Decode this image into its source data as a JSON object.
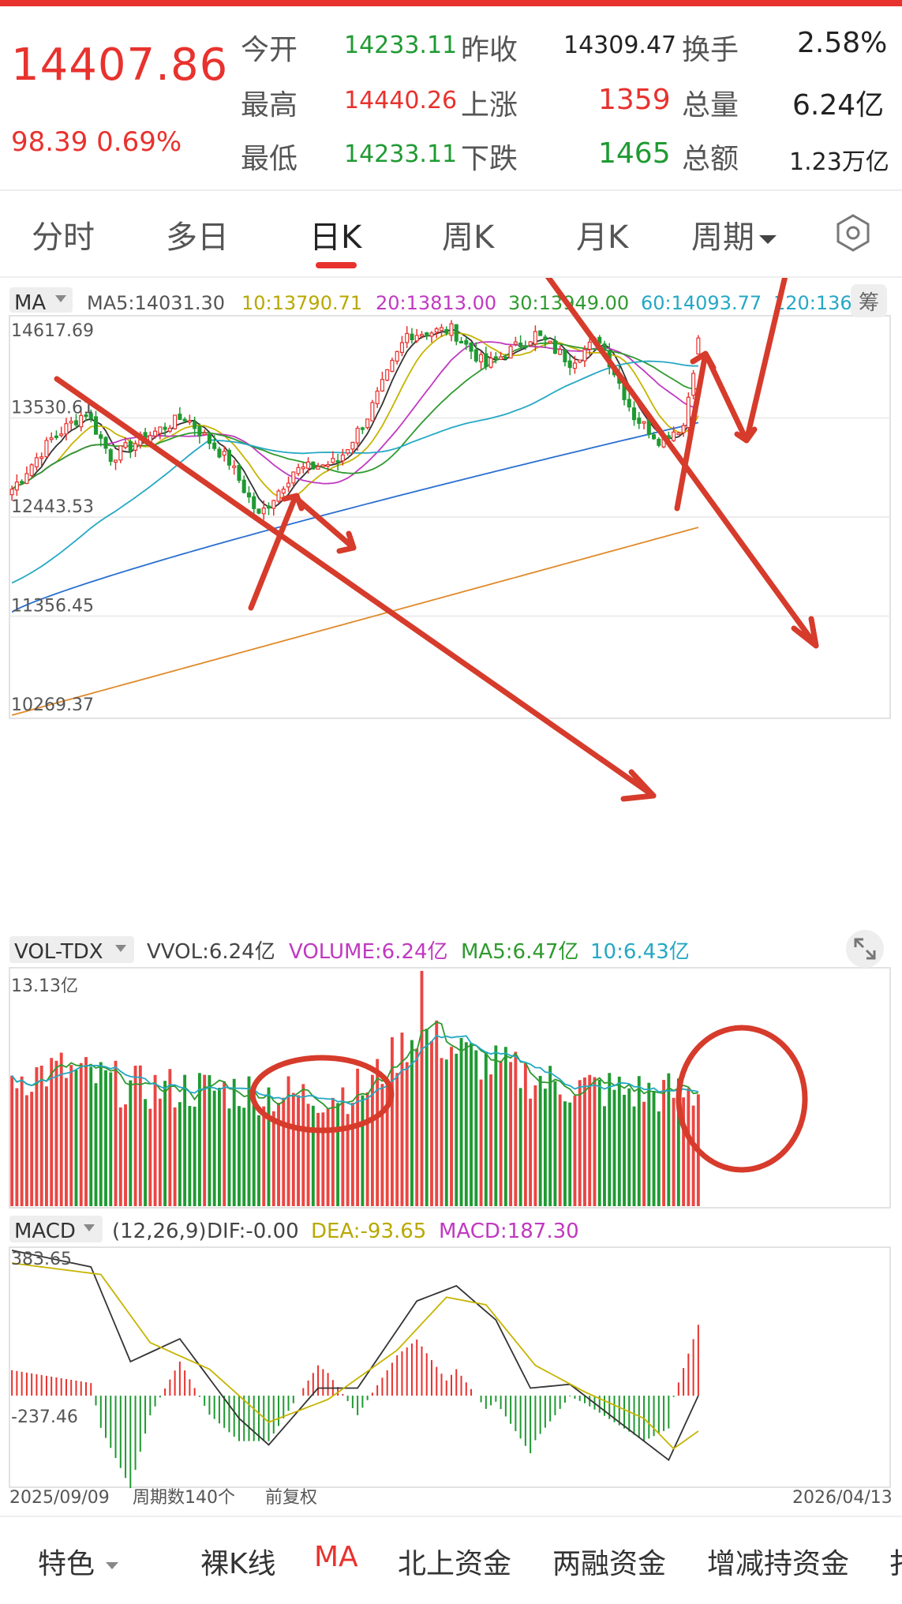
{
  "quote": {
    "price": "14407.86",
    "change": "98.39  0.69%",
    "labels": {
      "open": "今开",
      "high": "最高",
      "low": "最低",
      "prev_close": "昨收",
      "up": "上涨",
      "down": "下跌",
      "turnover": "换手",
      "volume": "总量",
      "amount": "总额"
    },
    "values": {
      "open": "14233.11",
      "high": "14440.26",
      "low": "14233.11",
      "prev_close": "14309.47",
      "up": "1359",
      "down": "1465",
      "turnover": "2.58%",
      "volume": "6.24亿",
      "amount": "1.23万亿"
    }
  },
  "tabs": [
    {
      "label": "分时"
    },
    {
      "label": "多日"
    },
    {
      "label": "日K"
    },
    {
      "label": "周K"
    },
    {
      "label": "月K"
    },
    {
      "label": "周期"
    }
  ],
  "bottom_nav": [
    {
      "label": "特色"
    },
    {
      "label": "裸K线"
    },
    {
      "label": "MA"
    },
    {
      "label": "北上资金"
    },
    {
      "label": "两融资金"
    },
    {
      "label": "增减持资金"
    },
    {
      "label": "扌"
    }
  ],
  "colors": {
    "up": "#e8322e",
    "down": "#1f9a32",
    "ma5": "#333333",
    "ma10": "#c7b400",
    "ma20": "#c039c0",
    "ma30": "#2f9a2f",
    "ma60": "#25a8c4",
    "ma120": "#2a6fd0",
    "ma250": "#e08a2a",
    "annotation": "#d63b2b"
  },
  "chart_data": [
    {
      "type": "candlestick",
      "indicator_label": "MA",
      "legend": [
        "MA5:14031.30",
        "10:13790.71",
        "20:13813.00",
        "30:13949.00",
        "60:14093.77",
        "120:136"
      ],
      "chip_label": "筹",
      "y_ticks": [
        "14617.69",
        "13530.61",
        "12443.53",
        "11356.45",
        "10269.37"
      ],
      "ylim": [
        10269.37,
        14617.69
      ],
      "period_count": 140,
      "x_start": "2025/09/09",
      "x_end": "2026/04/13",
      "last": {
        "open": 14233.11,
        "high": 14440.26,
        "low": 14233.11,
        "close": 14407.86
      },
      "ma_last": {
        "MA5": 14031.3,
        "MA10": 13790.71,
        "MA20": 13813.0,
        "MA30": 13949.0,
        "MA60": 14093.77
      },
      "ma120_start": 11400,
      "ma250_range": [
        10269.37,
        12330
      ],
      "trend_keypoints": [
        {
          "x": 0,
          "y": 12750
        },
        {
          "x": 8,
          "y": 13300
        },
        {
          "x": 15,
          "y": 13600
        },
        {
          "x": 20,
          "y": 13100
        },
        {
          "x": 28,
          "y": 13350
        },
        {
          "x": 35,
          "y": 13550
        },
        {
          "x": 44,
          "y": 13050
        },
        {
          "x": 50,
          "y": 12450
        },
        {
          "x": 57,
          "y": 12950
        },
        {
          "x": 66,
          "y": 13050
        },
        {
          "x": 72,
          "y": 13550
        },
        {
          "x": 80,
          "y": 14450
        },
        {
          "x": 89,
          "y": 14500
        },
        {
          "x": 96,
          "y": 14100
        },
        {
          "x": 106,
          "y": 14450
        },
        {
          "x": 113,
          "y": 14150
        },
        {
          "x": 119,
          "y": 14400
        },
        {
          "x": 126,
          "y": 13550
        },
        {
          "x": 131,
          "y": 13300
        },
        {
          "x": 136,
          "y": 13450
        },
        {
          "x": 139,
          "y": 14407.86
        }
      ]
    },
    {
      "type": "bar",
      "indicator_label": "VOL-TDX",
      "legend": [
        "VVOL:6.24亿",
        "VOLUME:6.24亿",
        "MA5:6.47亿",
        "10:6.43亿"
      ],
      "y_tick": "13.13亿",
      "ylim": [
        0,
        13.13
      ],
      "unit": "亿",
      "last_volume": 6.24,
      "peak_volume": 13.13,
      "volume_keypoints": [
        {
          "x": 0,
          "y": 7.2
        },
        {
          "x": 10,
          "y": 7.6
        },
        {
          "x": 25,
          "y": 6.6
        },
        {
          "x": 45,
          "y": 6.5
        },
        {
          "x": 60,
          "y": 6.1
        },
        {
          "x": 72,
          "y": 6.6
        },
        {
          "x": 82,
          "y": 9.8
        },
        {
          "x": 94,
          "y": 8.2
        },
        {
          "x": 110,
          "y": 6.8
        },
        {
          "x": 125,
          "y": 6.4
        },
        {
          "x": 139,
          "y": 6.24
        }
      ]
    },
    {
      "type": "macd",
      "indicator_label": "MACD",
      "params": "(12,26,9)",
      "legend": [
        "DIF:-0.00",
        "DEA:-93.65",
        "MACD:187.30"
      ],
      "y_ticks": [
        "383.65",
        "-237.46"
      ],
      "ylim": [
        -237.46,
        383.65
      ],
      "dif_keypoints": [
        {
          "x": 0,
          "y": 383.65
        },
        {
          "x": 16,
          "y": 340
        },
        {
          "x": 24,
          "y": 90
        },
        {
          "x": 34,
          "y": 150
        },
        {
          "x": 46,
          "y": -60
        },
        {
          "x": 52,
          "y": -130
        },
        {
          "x": 62,
          "y": 20
        },
        {
          "x": 70,
          "y": 20
        },
        {
          "x": 82,
          "y": 250
        },
        {
          "x": 90,
          "y": 290
        },
        {
          "x": 98,
          "y": 200
        },
        {
          "x": 105,
          "y": 20
        },
        {
          "x": 113,
          "y": 30
        },
        {
          "x": 122,
          "y": -60
        },
        {
          "x": 133,
          "y": -170
        },
        {
          "x": 139,
          "y": 0
        }
      ],
      "dea_keypoints": [
        {
          "x": 0,
          "y": 350
        },
        {
          "x": 18,
          "y": 320
        },
        {
          "x": 28,
          "y": 140
        },
        {
          "x": 40,
          "y": 70
        },
        {
          "x": 52,
          "y": -70
        },
        {
          "x": 64,
          "y": -10
        },
        {
          "x": 78,
          "y": 120
        },
        {
          "x": 88,
          "y": 260
        },
        {
          "x": 96,
          "y": 240
        },
        {
          "x": 106,
          "y": 80
        },
        {
          "x": 116,
          "y": 10
        },
        {
          "x": 128,
          "y": -60
        },
        {
          "x": 134,
          "y": -140
        },
        {
          "x": 139,
          "y": -93.65
        }
      ],
      "footer": {
        "start": "2025/09/09",
        "periods": "周期数140个",
        "adjust": "前复权",
        "end": "2026/04/13"
      }
    }
  ]
}
